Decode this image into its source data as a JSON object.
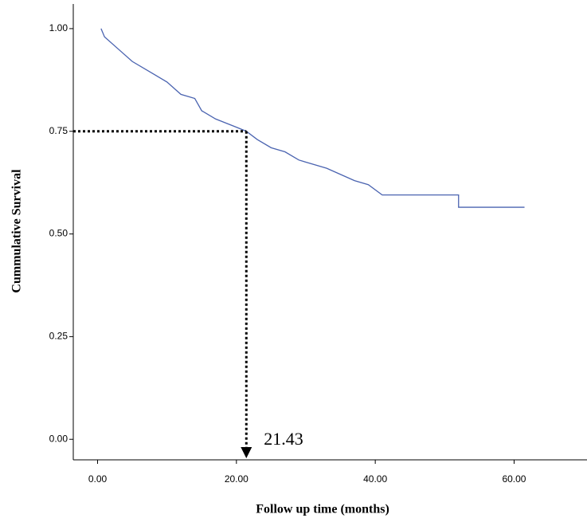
{
  "chart_data": {
    "type": "line",
    "x_label": "Follow up time (months)",
    "y_label": "Cummulative Survival",
    "x": [
      0.5,
      1,
      3,
      5,
      8,
      10,
      12,
      14,
      15,
      17,
      20,
      21.43,
      23,
      25,
      27,
      29,
      31,
      33,
      35,
      37,
      39,
      41,
      52,
      52,
      61.5
    ],
    "series": [
      {
        "color": "#4a63b0",
        "values": [
          1.0,
          0.98,
          0.95,
          0.92,
          0.89,
          0.87,
          0.84,
          0.83,
          0.8,
          0.78,
          0.76,
          0.75,
          0.73,
          0.71,
          0.7,
          0.68,
          0.67,
          0.66,
          0.645,
          0.63,
          0.62,
          0.595,
          0.595,
          0.565,
          0.565
        ]
      }
    ],
    "xlim": [
      -3.5,
      70.5
    ],
    "ylim": [
      -0.05,
      1.06
    ],
    "xticks": [
      {
        "value": 0,
        "label": "0.00"
      },
      {
        "value": 20,
        "label": "20.00"
      },
      {
        "value": 40,
        "label": "40.00"
      },
      {
        "value": 60,
        "label": "60.00"
      }
    ],
    "yticks": [
      {
        "value": 0,
        "label": "0.00"
      },
      {
        "value": 0.25,
        "label": "0.25"
      },
      {
        "value": 0.5,
        "label": "0.50"
      },
      {
        "value": 0.75,
        "label": "0.75"
      },
      {
        "value": 1,
        "label": "1.00"
      }
    ],
    "annotation": {
      "x": 21.43,
      "y": 0.75
    }
  }
}
